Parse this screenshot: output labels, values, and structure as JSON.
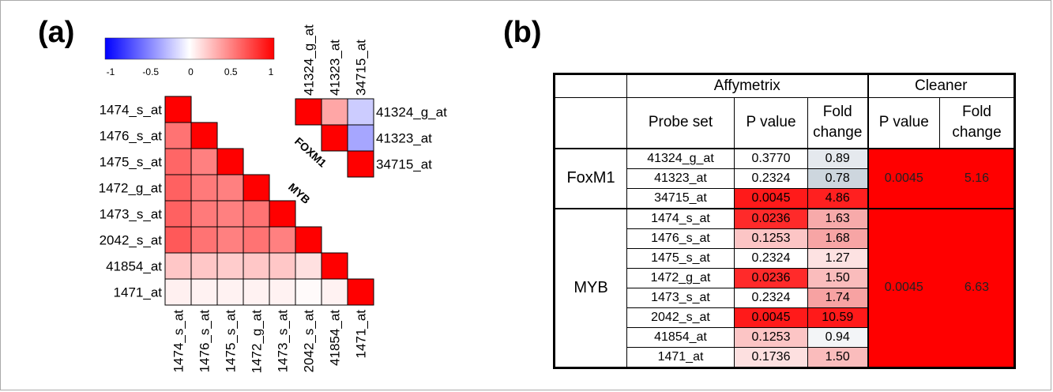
{
  "panel_a": {
    "label": "(a)",
    "colorbar": {
      "ticks": [
        "-1",
        "-0.5",
        "0",
        "0.5",
        "1"
      ],
      "colors": {
        "neg": "#0000ff",
        "zero": "#ffffff",
        "pos": "#ff0000"
      }
    },
    "myb_group_label": "MYB",
    "foxm1_group_label": "FOXM1"
  },
  "panel_b": {
    "label": "(b)",
    "headers": {
      "affymetrix": "Affymetrix",
      "cleaner": "Cleaner",
      "probe_set": "Probe set",
      "p_value": "P value",
      "fold": "Fold",
      "change": "change",
      "c_p_value": "P value",
      "c_fold": "Fold",
      "c_change": "change"
    }
  },
  "chart_data": [
    {
      "type": "heatmap",
      "title": "",
      "colorbar_range": [
        -1,
        1
      ],
      "labels": [
        "1474_s_at",
        "1476_s_at",
        "1475_s_at",
        "1472_g_at",
        "1473_s_at",
        "2042_s_at",
        "41854_at",
        "1471_at"
      ],
      "group": "MYB",
      "matrix": [
        [
          1,
          null,
          null,
          null,
          null,
          null,
          null,
          null
        ],
        [
          0.55,
          1,
          null,
          null,
          null,
          null,
          null,
          null
        ],
        [
          0.6,
          0.5,
          1,
          null,
          null,
          null,
          null,
          null
        ],
        [
          0.62,
          0.52,
          0.5,
          1,
          null,
          null,
          null,
          null
        ],
        [
          0.62,
          0.52,
          0.5,
          0.55,
          1,
          null,
          null,
          null
        ],
        [
          0.65,
          0.55,
          0.5,
          0.55,
          0.5,
          1,
          null,
          null
        ],
        [
          0.22,
          0.22,
          0.2,
          0.22,
          0.22,
          0.12,
          1,
          null
        ],
        [
          0.06,
          0.05,
          0.05,
          0.05,
          0.05,
          0.02,
          0.05,
          1
        ]
      ]
    },
    {
      "type": "heatmap",
      "title": "",
      "colorbar_range": [
        -1,
        1
      ],
      "labels": [
        "41324_g_at",
        "41323_at",
        "34715_at"
      ],
      "group": "FOXM1",
      "matrix": [
        [
          1,
          0.35,
          -0.2
        ],
        [
          null,
          1,
          -0.35
        ],
        [
          null,
          null,
          1
        ]
      ]
    },
    {
      "type": "table",
      "groups": [
        {
          "name": "FoxM1",
          "cleaner_p": "0.0045",
          "cleaner_fold": "5.16",
          "rows": [
            {
              "probe": "41324_g_at",
              "p": "0.3770",
              "fold": "0.89",
              "p_color": "#ffffff",
              "fold_color": "#e5e9ee"
            },
            {
              "probe": "41323_at",
              "p": "0.2324",
              "fold": "0.78",
              "p_color": "#ffffff",
              "fold_color": "#cdd6de"
            },
            {
              "probe": "34715_at",
              "p": "0.0045",
              "fold": "4.86",
              "p_color": "#ff1a1a",
              "fold_color": "#ff2020"
            }
          ]
        },
        {
          "name": "MYB",
          "cleaner_p": "0.0045",
          "cleaner_fold": "6.63",
          "rows": [
            {
              "probe": "1474_s_at",
              "p": "0.0236",
              "fold": "1.63",
              "p_color": "#ff2a2a",
              "fold_color": "#f7aaaa"
            },
            {
              "probe": "1476_s_at",
              "p": "0.1253",
              "fold": "1.68",
              "p_color": "#fcc5c5",
              "fold_color": "#f7a5a5"
            },
            {
              "probe": "1475_s_at",
              "p": "0.2324",
              "fold": "1.27",
              "p_color": "#ffffff",
              "fold_color": "#fde2e2"
            },
            {
              "probe": "1472_g_at",
              "p": "0.0236",
              "fold": "1.50",
              "p_color": "#ff2a2a",
              "fold_color": "#fabcbc"
            },
            {
              "probe": "1473_s_at",
              "p": "0.2324",
              "fold": "1.74",
              "p_color": "#ffffff",
              "fold_color": "#f7a2a2"
            },
            {
              "probe": "2042_s_at",
              "p": "0.0045",
              "fold": "10.59",
              "p_color": "#ff1a1a",
              "fold_color": "#ff1a1a"
            },
            {
              "probe": "41854_at",
              "p": "0.1253",
              "fold": "0.94",
              "p_color": "#fcc5c5",
              "fold_color": "#f3f5f7"
            },
            {
              "probe": "1471_at",
              "p": "0.1736",
              "fold": "1.50",
              "p_color": "#fde0e0",
              "fold_color": "#fabcbc"
            }
          ]
        }
      ]
    }
  ]
}
